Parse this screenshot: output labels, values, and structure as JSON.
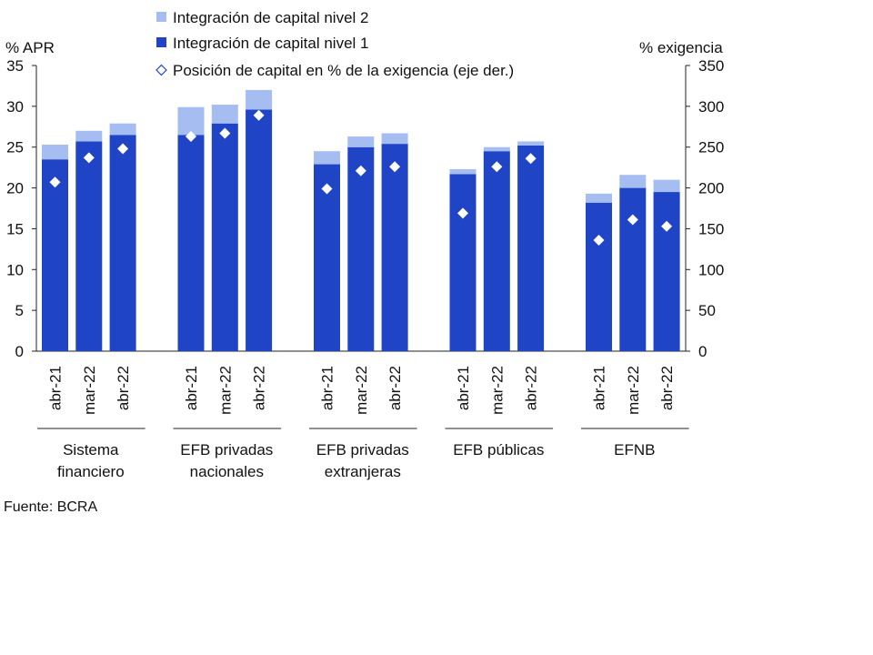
{
  "chart_data": {
    "type": "bar",
    "stacked": true,
    "left_axis_label": "% APR",
    "right_axis_label": "% exigencia",
    "left_ylim": [
      0,
      35
    ],
    "left_ticks": [
      0,
      5,
      10,
      15,
      20,
      25,
      30,
      35
    ],
    "right_ylim": [
      0,
      350
    ],
    "right_ticks": [
      0,
      50,
      100,
      150,
      200,
      250,
      300,
      350
    ],
    "grid": false,
    "legend_position": "top",
    "groups": [
      {
        "label_lines": [
          "Sistema",
          "financiero"
        ],
        "categories": [
          "abr-21",
          "mar-22",
          "abr-22"
        ]
      },
      {
        "label_lines": [
          "EFB privadas",
          "nacionales"
        ],
        "categories": [
          "abr-21",
          "mar-22",
          "abr-22"
        ]
      },
      {
        "label_lines": [
          "EFB privadas",
          "extranjeras"
        ],
        "categories": [
          "abr-21",
          "mar-22",
          "abr-22"
        ]
      },
      {
        "label_lines": [
          "EFB públicas"
        ],
        "categories": [
          "abr-21",
          "mar-22",
          "abr-22"
        ]
      },
      {
        "label_lines": [
          "EFNB"
        ],
        "categories": [
          "abr-21",
          "mar-22",
          "abr-22"
        ]
      }
    ],
    "series": [
      {
        "name": "Integración de capital nivel 2",
        "kind": "bar",
        "axis": "left",
        "color": "#a6bdf2",
        "values": [
          1.8,
          1.3,
          1.4,
          3.4,
          2.3,
          2.4,
          1.6,
          1.3,
          1.3,
          0.6,
          0.5,
          0.5,
          1.1,
          1.6,
          1.5
        ]
      },
      {
        "name": "Integración de capital nivel 1",
        "kind": "bar",
        "axis": "left",
        "color": "#1f44c6",
        "values": [
          23.5,
          25.7,
          26.5,
          26.5,
          27.9,
          29.6,
          22.9,
          25.0,
          25.4,
          21.7,
          24.5,
          25.2,
          18.2,
          20.0,
          19.5
        ]
      },
      {
        "name": "Posición de capital en % de la exigencia (eje der.)",
        "kind": "marker",
        "axis": "right",
        "color": "#ffffff",
        "values": [
          207,
          237,
          248,
          263,
          267,
          289,
          199,
          221,
          226,
          169,
          226,
          236,
          136,
          161,
          153
        ]
      }
    ]
  },
  "source_note": "Fuente: BCRA"
}
